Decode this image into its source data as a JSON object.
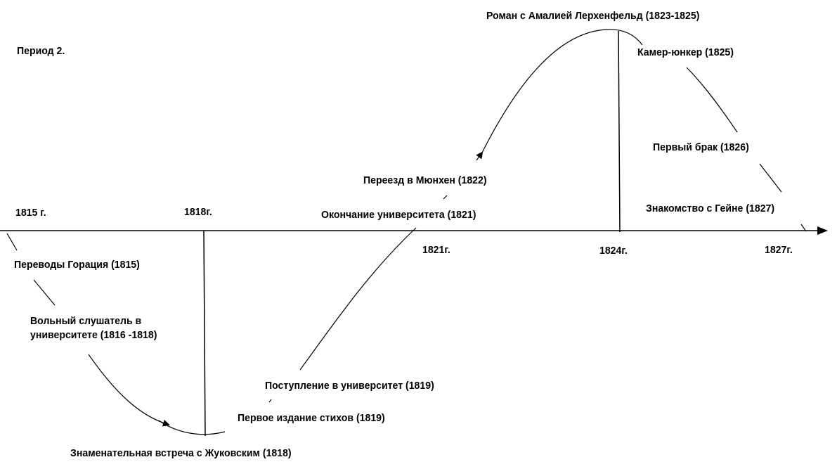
{
  "period_label": "Период 2.",
  "years": [
    "1815 г.",
    "1818г.",
    "1821г.",
    "1824г.",
    "1827г."
  ],
  "events": {
    "horace_translations": "Переводы Горация (1815)",
    "free_listener_line1": "Вольный слушатель в",
    "free_listener_line2": "университете (1816 -1818)",
    "zhukovsky_meeting": "Знаменательная встреча с Жуковским (1818)",
    "first_edition": "Первое издание стихов (1819)",
    "university_entry": "Поступление в университет (1819)",
    "university_graduation": "Окончание университета (1821)",
    "move_munich": "Переезд в Мюнхен (1822)",
    "amalia_romance": "Роман с Амалией Лерхенфельд (1823-1825)",
    "kammerjunker": "Камер-юнкер (1825)",
    "first_marriage": "Первый брак (1826)",
    "heine_acquaintance": "Знакомство с Гейне (1827)"
  },
  "colors": {
    "line": "#000000",
    "background": "#ffffff"
  }
}
